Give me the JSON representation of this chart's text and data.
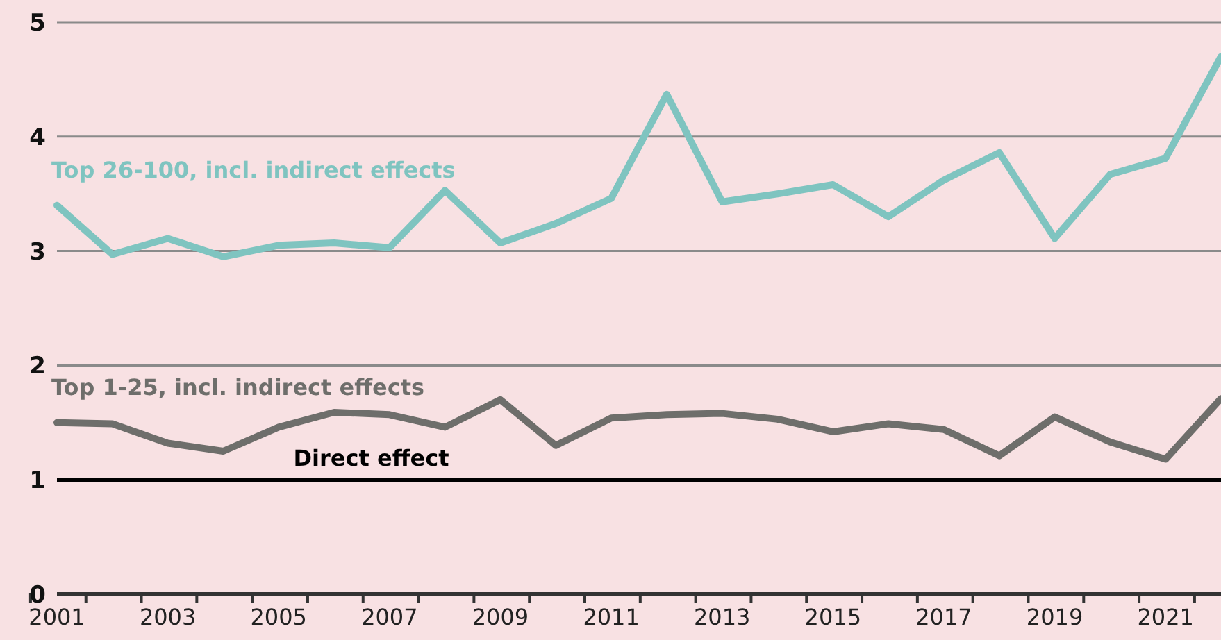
{
  "chart_data": {
    "type": "line",
    "categories": [
      "2001",
      null,
      "2003",
      null,
      "2005",
      null,
      "2007",
      null,
      "2009",
      null,
      "2011",
      null,
      "2013",
      null,
      "2015",
      null,
      "2017",
      null,
      "2019",
      null,
      "2021",
      null
    ],
    "series": [
      {
        "name": "Top 26-100, incl. indirect effects",
        "color": "#7fc4c0",
        "values": [
          3.4,
          2.97,
          3.11,
          2.95,
          3.05,
          3.07,
          3.03,
          3.53,
          3.07,
          3.24,
          3.46,
          4.37,
          3.43,
          3.5,
          3.58,
          3.3,
          3.62,
          3.86,
          3.11,
          3.67,
          3.81,
          4.7
        ]
      },
      {
        "name": "Top 1-25, incl.  indirect effects",
        "color": "#6e6e6b",
        "values": [
          1.5,
          1.49,
          1.32,
          1.25,
          1.46,
          1.59,
          1.57,
          1.46,
          1.7,
          1.3,
          1.54,
          1.57,
          1.58,
          1.53,
          1.42,
          1.49,
          1.44,
          1.21,
          1.55,
          1.33,
          1.18,
          1.71
        ]
      }
    ],
    "ylim": [
      0,
      5
    ],
    "yticks": [
      0,
      1,
      2,
      3,
      4,
      5
    ],
    "grid": "y",
    "marker": "none",
    "line_style": "solid",
    "ref_lines": [
      {
        "axis": "y",
        "value": 1,
        "label": "Direct effect",
        "color": "#000000"
      }
    ]
  }
}
